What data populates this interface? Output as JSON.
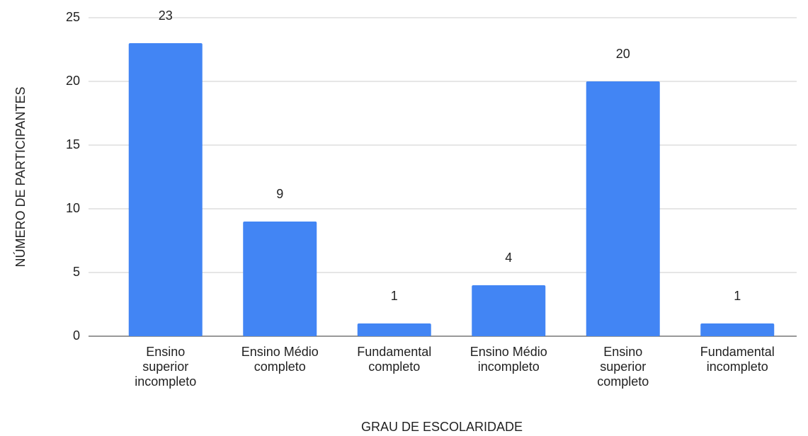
{
  "chart_data": {
    "type": "bar",
    "categories": [
      "Ensino superior incompleto",
      "Ensino Médio completo",
      "Fundamental completo",
      "Ensino Médio incompleto",
      "Ensino superior completo",
      "Fundamental incompleto"
    ],
    "values": [
      23,
      9,
      1,
      4,
      20,
      1
    ],
    "color": "#4285f4",
    "x_label": "GRAU DE ESCOLARIDADE",
    "y_label": "NÚMERO DE PARTICIPANTES",
    "ylim": [
      0,
      25
    ],
    "yticks": [
      0,
      5,
      10,
      15,
      20,
      25
    ],
    "grid": true
  }
}
